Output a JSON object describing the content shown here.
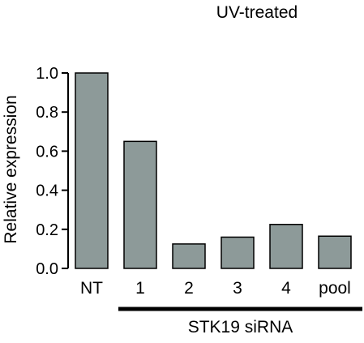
{
  "chart_data": {
    "type": "bar",
    "title": "UV-treated",
    "ylabel": "Relative expression",
    "xlabel": "",
    "categories": [
      "NT",
      "1",
      "2",
      "3",
      "4",
      "pool"
    ],
    "values": [
      1.0,
      0.65,
      0.125,
      0.16,
      0.225,
      0.165
    ],
    "ylim": [
      0,
      1.0
    ],
    "yticks": [
      "0.0",
      "0.2",
      "0.4",
      "0.6",
      "0.8",
      "1.0"
    ],
    "grid": false,
    "bar_color": "#8d9a99",
    "bar_edge_color": "#000000",
    "group_label": "STK19 siRNA",
    "group_span": [
      "1",
      "pool"
    ]
  }
}
